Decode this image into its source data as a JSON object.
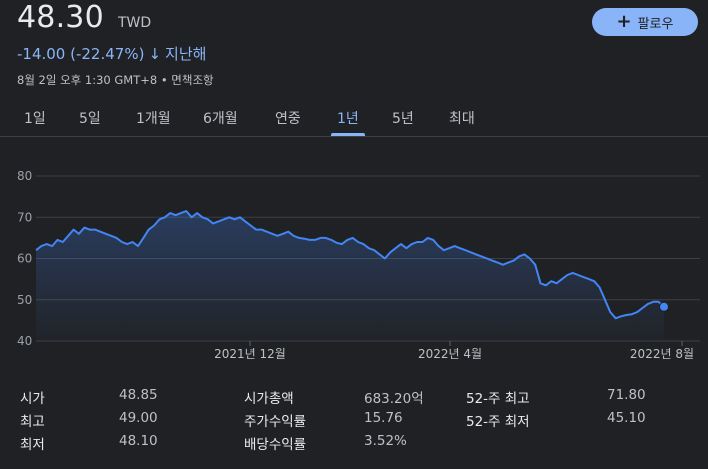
{
  "header": {
    "price": "48.30",
    "currency": "TWD",
    "follow_label": "팔로우",
    "change": "-14.00 (-22.47%)",
    "change_arrow": "↓",
    "period": "지난해",
    "timestamp": "8월 2일 오후 1:30 GMT+8 • 면책조항"
  },
  "tabs": [
    "1일",
    "5일",
    "1개월",
    "6개월",
    "연중",
    "1년",
    "5년",
    "최대"
  ],
  "active_tab": "1년",
  "colors": {
    "accent": "#8ab4f8",
    "background": "#202124",
    "line": "#4285f4"
  },
  "chart_data": {
    "type": "area",
    "y_ticks": [
      "80",
      "70",
      "60",
      "50",
      "40"
    ],
    "ylim": [
      40,
      80
    ],
    "x_labels": [
      "2021년 12월",
      "2022년 4월",
      "2022년 8월"
    ],
    "values": [
      62,
      63,
      63.5,
      63,
      64.5,
      64,
      65.5,
      67,
      66,
      67.5,
      67,
      67,
      66.5,
      66,
      65.5,
      65,
      64,
      63.5,
      64,
      63,
      65,
      67,
      68,
      69.5,
      70,
      71,
      70.5,
      71,
      71.5,
      70,
      71,
      70,
      69.5,
      68.5,
      69,
      69.5,
      70,
      69.5,
      70,
      69,
      68,
      67,
      67,
      66.5,
      66,
      65.5,
      66,
      66.5,
      65.5,
      65,
      64.8,
      64.5,
      64.5,
      65,
      65,
      64.5,
      63.8,
      63.5,
      64.5,
      65,
      64,
      63.5,
      62.5,
      62,
      61,
      60,
      61.5,
      62.5,
      63.5,
      62.5,
      63.5,
      64,
      64,
      65,
      64.5,
      63,
      62,
      62.5,
      63,
      62.5,
      62,
      61.5,
      61,
      60.5,
      60,
      59.5,
      59,
      58.5,
      59,
      59.5,
      60.5,
      61,
      60,
      58.5,
      54,
      53.5,
      54.5,
      54,
      55,
      56,
      56.5,
      56,
      55.5,
      55,
      54.5,
      53,
      50,
      47,
      45.5,
      46,
      46.3,
      46.5,
      47,
      48,
      49,
      49.5,
      49.5,
      48.3
    ],
    "last_value": 48.3
  },
  "stats": [
    {
      "label": "시가",
      "value": "48.85"
    },
    {
      "label": "최고",
      "value": "49.00"
    },
    {
      "label": "최저",
      "value": "48.10"
    },
    {
      "label": "시가총액",
      "value": "683.20억"
    },
    {
      "label": "주가수익률",
      "value": "15.76"
    },
    {
      "label": "배당수익률",
      "value": "3.52%"
    },
    {
      "label": "52-주 최고",
      "value": "71.80"
    },
    {
      "label": "52-주 최저",
      "value": "45.10"
    }
  ]
}
